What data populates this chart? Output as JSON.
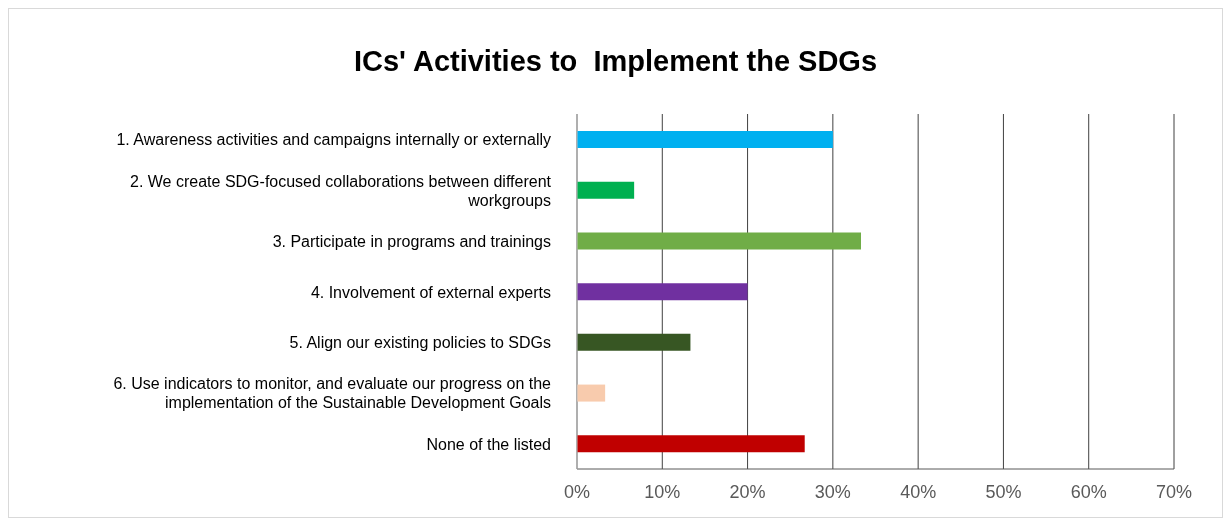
{
  "chart_data": {
    "type": "bar",
    "orientation": "horizontal",
    "title": "ICs' Activities to  Implement the SDGs",
    "categories": [
      "1. Awareness activities and campaigns internally or externally",
      "2. We create SDG-focused collaborations between different workgroups",
      "3. Participate in programs and trainings",
      "4. Involvement of external experts",
      "5. Align our existing policies to SDGs",
      "6. Use indicators to monitor, and evaluate our progress on the implementation of the Sustainable Development Goals",
      "None of the listed"
    ],
    "values": [
      30,
      6.7,
      33.3,
      20,
      13.3,
      3.3,
      26.7
    ],
    "colors": [
      "#00b0f0",
      "#00b050",
      "#70ad47",
      "#7030a0",
      "#375623",
      "#f8cbad",
      "#c00000"
    ],
    "xlim": [
      0,
      70
    ],
    "xticks": [
      {
        "value": 0,
        "label": "0%"
      },
      {
        "value": 10,
        "label": "10%"
      },
      {
        "value": 20,
        "label": "20%"
      },
      {
        "value": 30,
        "label": "30%"
      },
      {
        "value": 40,
        "label": "40%"
      },
      {
        "value": 50,
        "label": "50%"
      },
      {
        "value": 60,
        "label": "60%"
      },
      {
        "value": 70,
        "label": "70%"
      }
    ],
    "grid": "x",
    "legend": false
  }
}
